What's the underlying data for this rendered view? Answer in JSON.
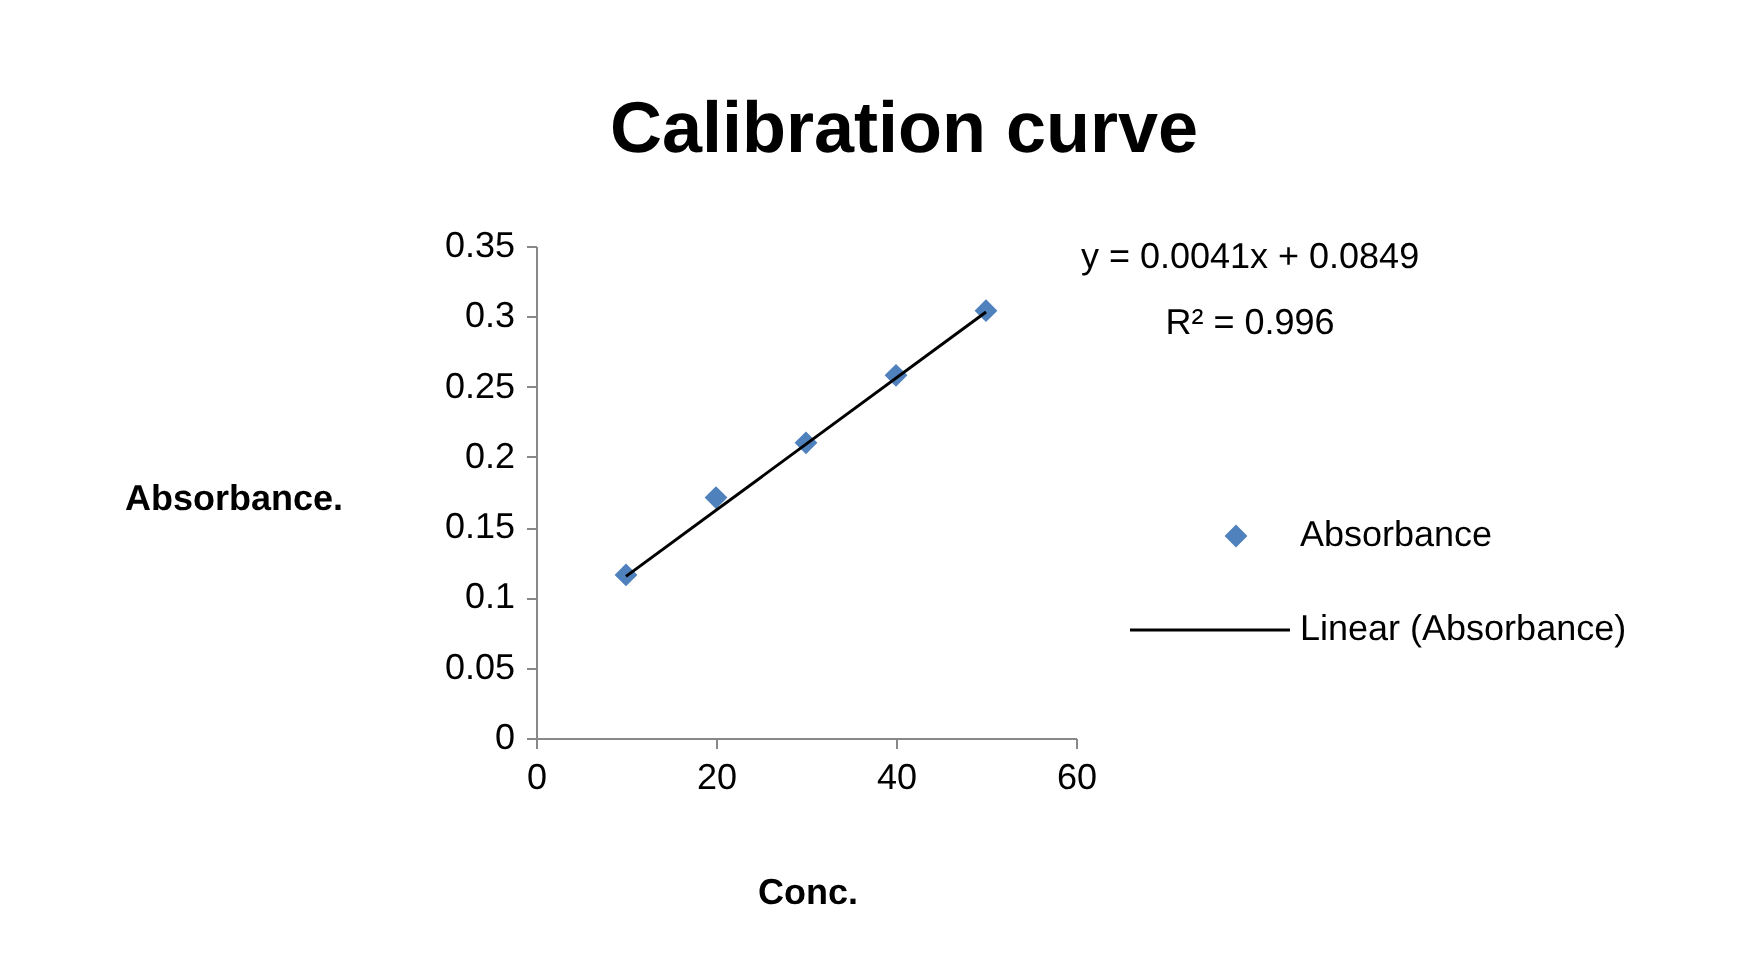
{
  "chart_data": {
    "type": "scatter",
    "title": "Calibration curve",
    "xlabel": "Conc.",
    "ylabel": "Absorbance.",
    "x": [
      10,
      20,
      30,
      40,
      50
    ],
    "series": [
      {
        "name": "Absorbance",
        "color": "#4f81bd",
        "marker": "diamond",
        "values": [
          0.116,
          0.171,
          0.21,
          0.258,
          0.304
        ]
      },
      {
        "name": "Linear (Absorbance)",
        "type": "line",
        "color": "#000000",
        "x": [
          10,
          50
        ],
        "values": [
          0.115,
          0.303
        ]
      }
    ],
    "annotations": [
      "y = 0.0041x + 0.0849",
      "R² = 0.996"
    ],
    "xlim": [
      0,
      60
    ],
    "xticks": [
      0,
      20,
      40,
      60
    ],
    "ylim": [
      0,
      0.35
    ],
    "yticks": [
      0,
      0.05,
      0.1,
      0.15,
      0.2,
      0.25,
      0.3,
      0.35
    ],
    "grid": false,
    "legend": "right"
  }
}
